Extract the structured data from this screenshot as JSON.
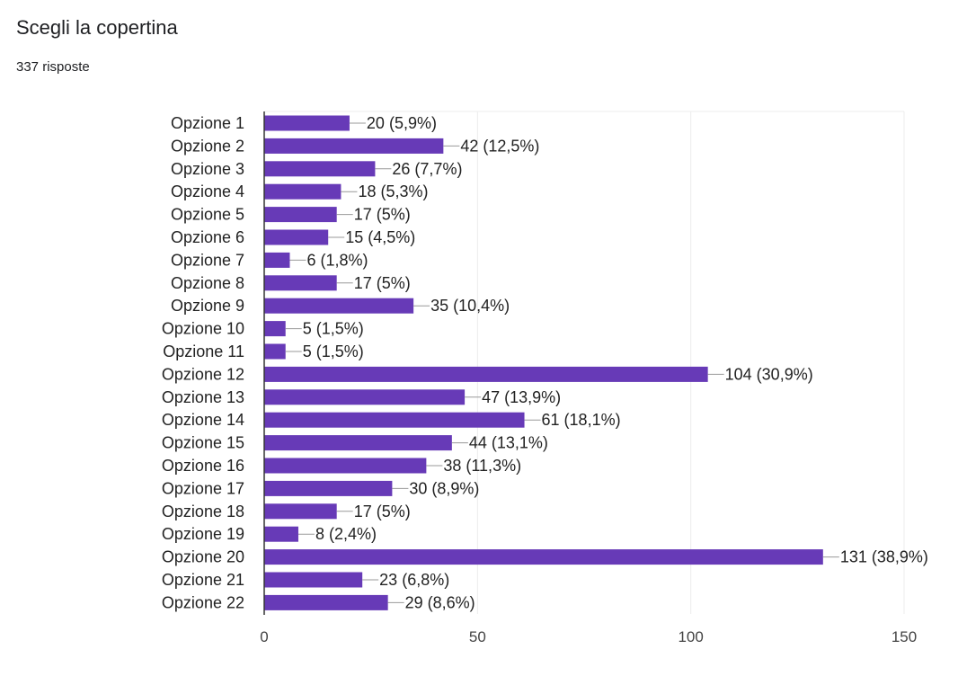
{
  "header": {
    "title": "Scegli la copertina",
    "responses": "337 risposte"
  },
  "colors": {
    "bar": "#673ab7",
    "grid": "#ececec",
    "axis": "#333333",
    "text": "#222222",
    "tick_text": "#444444",
    "leader": "#999999"
  },
  "chart_data": {
    "type": "bar",
    "orientation": "horizontal",
    "categories": [
      "Opzione 1",
      "Opzione 2",
      "Opzione 3",
      "Opzione 4",
      "Opzione 5",
      "Opzione 6",
      "Opzione 7",
      "Opzione 8",
      "Opzione 9",
      "Opzione 10",
      "Opzione 11",
      "Opzione 12",
      "Opzione 13",
      "Opzione 14",
      "Opzione 15",
      "Opzione 16",
      "Opzione 17",
      "Opzione 18",
      "Opzione 19",
      "Opzione 20",
      "Opzione 21",
      "Opzione 22"
    ],
    "values": [
      20,
      42,
      26,
      18,
      17,
      15,
      6,
      17,
      35,
      5,
      5,
      104,
      47,
      61,
      44,
      38,
      30,
      17,
      8,
      131,
      23,
      29
    ],
    "labels": [
      "20 (5,9%)",
      "42 (12,5%)",
      "26 (7,7%)",
      "18 (5,3%)",
      "17 (5%)",
      "15 (4,5%)",
      "6 (1,8%)",
      "17 (5%)",
      "35 (10,4%)",
      "5 (1,5%)",
      "5 (1,5%)",
      "104 (30,9%)",
      "47 (13,9%)",
      "61 (18,1%)",
      "44 (13,1%)",
      "38 (11,3%)",
      "30 (8,9%)",
      "17 (5%)",
      "8 (2,4%)",
      "131 (38,9%)",
      "23 (6,8%)",
      "29 (8,6%)"
    ],
    "xlim": [
      0,
      150
    ],
    "xticks": [
      0,
      50,
      100,
      150
    ],
    "xlabel": "",
    "ylabel": "",
    "grid": true
  }
}
